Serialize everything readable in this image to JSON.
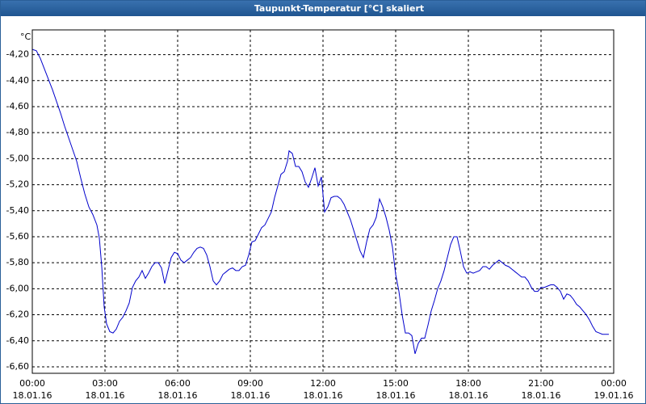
{
  "chart_data": {
    "type": "line",
    "title": "Taupunkt-Temperatur [°C] skaliert",
    "ylabel": "°C",
    "xlim": [
      0,
      1440
    ],
    "ylim": [
      -6.65,
      -4.01
    ],
    "grid": true,
    "grid_style": "dashed",
    "xticks": [
      {
        "value": 0,
        "label": "00:00",
        "date": "18.01.16"
      },
      {
        "value": 180,
        "label": "03:00",
        "date": "18.01.16"
      },
      {
        "value": 360,
        "label": "06:00",
        "date": "18.01.16"
      },
      {
        "value": 540,
        "label": "09:00",
        "date": "18.01.16"
      },
      {
        "value": 720,
        "label": "12:00",
        "date": "18.01.16"
      },
      {
        "value": 900,
        "label": "15:00",
        "date": "18.01.16"
      },
      {
        "value": 1080,
        "label": "18:00",
        "date": "18.01.16"
      },
      {
        "value": 1260,
        "label": "21:00",
        "date": "18.01.16"
      },
      {
        "value": 1440,
        "label": "00:00",
        "date": "19.01.16"
      }
    ],
    "yticks": [
      {
        "value": -4.2,
        "label": "-4,20"
      },
      {
        "value": -4.4,
        "label": "-4,40"
      },
      {
        "value": -4.6,
        "label": "-4,60"
      },
      {
        "value": -4.8,
        "label": "-4,80"
      },
      {
        "value": -5.0,
        "label": "-5,00"
      },
      {
        "value": -5.2,
        "label": "-5,20"
      },
      {
        "value": -5.4,
        "label": "-5,40"
      },
      {
        "value": -5.6,
        "label": "-5,60"
      },
      {
        "value": -5.8,
        "label": "-5,80"
      },
      {
        "value": -6.0,
        "label": "-6,00"
      },
      {
        "value": -6.2,
        "label": "-6,20"
      },
      {
        "value": -6.4,
        "label": "-6,40"
      },
      {
        "value": -6.6,
        "label": "-6,60"
      }
    ],
    "series": [
      {
        "color": "#0000cc",
        "x": [
          0,
          10,
          20,
          30,
          40,
          50,
          60,
          70,
          80,
          90,
          100,
          110,
          120,
          130,
          140,
          150,
          160,
          166,
          172,
          178,
          184,
          192,
          200,
          208,
          216,
          224,
          232,
          240,
          248,
          256,
          264,
          272,
          280,
          288,
          296,
          304,
          312,
          320,
          328,
          336,
          344,
          352,
          360,
          368,
          376,
          384,
          392,
          400,
          408,
          416,
          424,
          432,
          440,
          448,
          456,
          464,
          472,
          480,
          488,
          496,
          504,
          512,
          520,
          528,
          536,
          544,
          552,
          560,
          568,
          576,
          584,
          592,
          600,
          608,
          616,
          624,
          632,
          636,
          644,
          652,
          660,
          668,
          676,
          684,
          692,
          700,
          708,
          716,
          724,
          732,
          740,
          748,
          756,
          764,
          772,
          780,
          788,
          796,
          804,
          812,
          820,
          828,
          836,
          844,
          852,
          860,
          868,
          876,
          884,
          892,
          900,
          908,
          916,
          924,
          932,
          940,
          948,
          956,
          964,
          972,
          980,
          988,
          996,
          1004,
          1012,
          1020,
          1028,
          1036,
          1044,
          1052,
          1060,
          1068,
          1076,
          1084,
          1092,
          1100,
          1108,
          1116,
          1124,
          1132,
          1140,
          1148,
          1156,
          1164,
          1172,
          1180,
          1188,
          1196,
          1204,
          1212,
          1220,
          1228,
          1236,
          1244,
          1252,
          1260,
          1268,
          1276,
          1284,
          1292,
          1300,
          1308,
          1316,
          1324,
          1332,
          1340,
          1348,
          1356,
          1364,
          1372,
          1380,
          1388,
          1396,
          1404,
          1412,
          1428
        ],
        "values": [
          -4.16,
          -4.17,
          -4.23,
          -4.31,
          -4.39,
          -4.47,
          -4.56,
          -4.65,
          -4.75,
          -4.84,
          -4.93,
          -5.02,
          -5.15,
          -5.27,
          -5.37,
          -5.43,
          -5.51,
          -5.61,
          -5.83,
          -6.14,
          -6.27,
          -6.33,
          -6.34,
          -6.31,
          -6.25,
          -6.22,
          -6.17,
          -6.11,
          -5.99,
          -5.94,
          -5.91,
          -5.86,
          -5.92,
          -5.88,
          -5.83,
          -5.8,
          -5.8,
          -5.84,
          -5.96,
          -5.86,
          -5.76,
          -5.72,
          -5.73,
          -5.78,
          -5.8,
          -5.78,
          -5.76,
          -5.72,
          -5.69,
          -5.68,
          -5.69,
          -5.74,
          -5.83,
          -5.94,
          -5.97,
          -5.94,
          -5.89,
          -5.87,
          -5.85,
          -5.84,
          -5.86,
          -5.86,
          -5.83,
          -5.82,
          -5.74,
          -5.64,
          -5.63,
          -5.58,
          -5.53,
          -5.51,
          -5.46,
          -5.41,
          -5.3,
          -5.21,
          -5.12,
          -5.1,
          -5.02,
          -4.94,
          -4.96,
          -5.06,
          -5.06,
          -5.1,
          -5.18,
          -5.22,
          -5.15,
          -5.07,
          -5.21,
          -5.14,
          -5.41,
          -5.37,
          -5.3,
          -5.29,
          -5.29,
          -5.31,
          -5.35,
          -5.41,
          -5.47,
          -5.55,
          -5.63,
          -5.71,
          -5.76,
          -5.64,
          -5.54,
          -5.51,
          -5.45,
          -5.31,
          -5.37,
          -5.45,
          -5.55,
          -5.68,
          -5.89,
          -6.02,
          -6.2,
          -6.34,
          -6.34,
          -6.36,
          -6.5,
          -6.42,
          -6.38,
          -6.38,
          -6.28,
          -6.17,
          -6.09,
          -6.0,
          -5.94,
          -5.86,
          -5.76,
          -5.66,
          -5.6,
          -5.6,
          -5.71,
          -5.83,
          -5.88,
          -5.87,
          -5.88,
          -5.87,
          -5.86,
          -5.83,
          -5.83,
          -5.85,
          -5.82,
          -5.8,
          -5.78,
          -5.8,
          -5.82,
          -5.83,
          -5.85,
          -5.87,
          -5.89,
          -5.91,
          -5.91,
          -5.94,
          -5.99,
          -6.02,
          -6.02,
          -5.99,
          -5.99,
          -5.98,
          -5.97,
          -5.97,
          -5.99,
          -6.02,
          -6.08,
          -6.04,
          -6.05,
          -6.08,
          -6.12,
          -6.14,
          -6.17,
          -6.2,
          -6.24,
          -6.29,
          -6.33,
          -6.34,
          -6.35,
          -6.35
        ]
      }
    ]
  }
}
